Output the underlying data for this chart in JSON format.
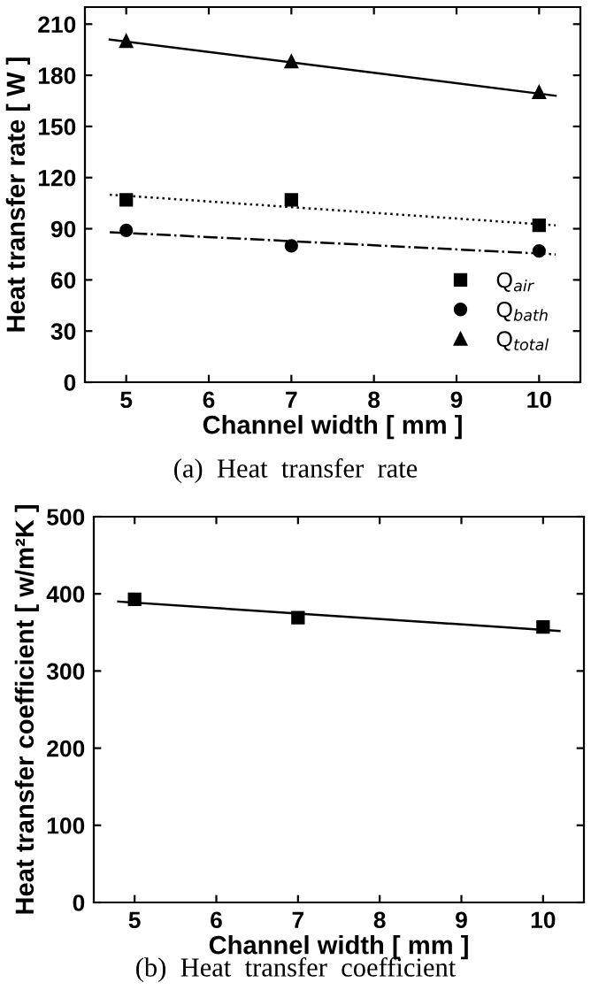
{
  "chart_data": [
    {
      "type": "scatter",
      "xlabel": "Channel width [ mm ]",
      "ylabel": "Heat transfer rate [ W ]",
      "annotations": [
        "(a)  Heat  transfer  rate"
      ],
      "xlim": [
        4.5,
        10.5
      ],
      "xticks": [
        5,
        6,
        7,
        8,
        9,
        10
      ],
      "ylim": [
        0,
        220
      ],
      "yticks": [
        0,
        30,
        60,
        90,
        120,
        150,
        180,
        210
      ],
      "grid": false,
      "legend": "bottom right",
      "series": [
        {
          "name": "Q$_{air}$",
          "color": "#000000",
          "marker": "square",
          "x": [
            5,
            7,
            10
          ],
          "values": [
            107,
            107,
            92
          ]
        },
        {
          "name": "Q$_{bath}$",
          "color": "#000000",
          "marker": "circle",
          "x": [
            5,
            7,
            10
          ],
          "values": [
            89,
            80,
            77
          ]
        },
        {
          "name": "Q$_{total}$",
          "color": "#000000",
          "marker": "triangle",
          "x": [
            5,
            7,
            10
          ],
          "values": [
            200,
            188,
            170
          ]
        },
        {
          "type": "line",
          "color": "#000000",
          "line_style": "dotted",
          "x": [
            4.8,
            10.2
          ],
          "values": [
            110,
            92
          ]
        },
        {
          "type": "line",
          "color": "#000000",
          "line_style": "dashdot",
          "x": [
            4.8,
            10.2
          ],
          "values": [
            88,
            75
          ]
        },
        {
          "type": "line",
          "color": "#000000",
          "line_style": "solid",
          "x": [
            4.8,
            10.2
          ],
          "values": [
            201,
            168
          ]
        }
      ]
    },
    {
      "type": "scatter",
      "xlabel": "Channel width [ mm ]",
      "ylabel": "Heat transfer coefficient [ w/m²K ]",
      "annotations": [
        "(b)  Heat  transfer  coefficient"
      ],
      "xlim": [
        4.5,
        10.5
      ],
      "xticks": [
        5,
        6,
        7,
        8,
        9,
        10
      ],
      "ylim": [
        0,
        500
      ],
      "yticks": [
        0,
        100,
        200,
        300,
        400,
        500
      ],
      "grid": false,
      "series": [
        {
          "color": "#000000",
          "marker": "square",
          "x": [
            5,
            7,
            10
          ],
          "values": [
            393,
            369,
            357
          ]
        },
        {
          "type": "line",
          "color": "#000000",
          "line_style": "solid",
          "x": [
            4.8,
            10.2
          ],
          "values": [
            390,
            352
          ]
        }
      ]
    }
  ]
}
